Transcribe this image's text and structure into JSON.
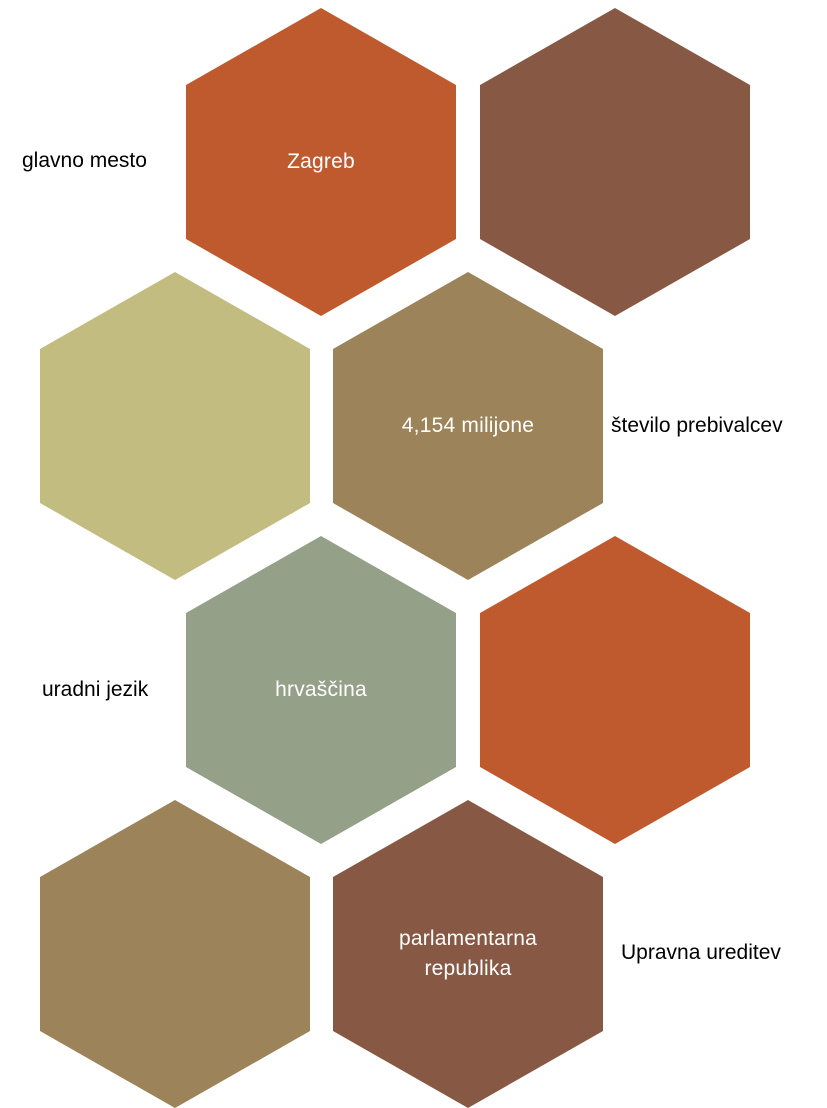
{
  "colors": {
    "orange": "#bf5a2e",
    "brown": "#875843",
    "khaki": "#c3bc80",
    "tan": "#9c8359",
    "sage": "#95a088"
  },
  "hexagons": [
    {
      "text": "Zagreb",
      "color": "#bf5a2e"
    },
    {
      "text": "",
      "color": "#875843"
    },
    {
      "text": "",
      "color": "#c3bc80"
    },
    {
      "text": "4,154 milijone",
      "color": "#9c8359"
    },
    {
      "text": "hrvaščina",
      "color": "#95a088"
    },
    {
      "text": "",
      "color": "#bf5a2e"
    },
    {
      "text": "",
      "color": "#9c8359"
    },
    {
      "text": "parlamentarna\nrepublika",
      "color": "#875843"
    }
  ],
  "labels": {
    "capital": "glavno mesto",
    "population": "število prebivalcev",
    "language": "uradni jezik",
    "government": "Upravna ureditev"
  }
}
